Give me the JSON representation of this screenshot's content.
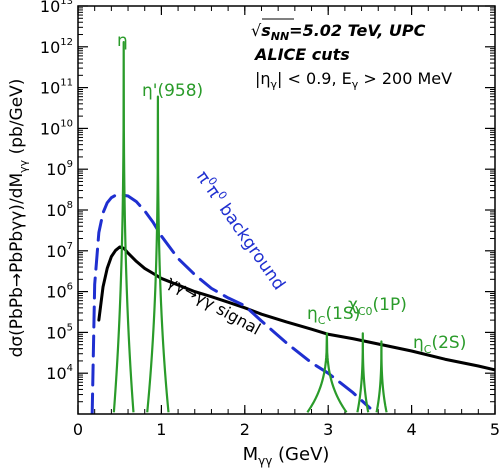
{
  "chart_data": {
    "type": "line",
    "ylabel_parts": {
      "main": "dσ(PbPb→PbPbγγ)/dM",
      "sub": "γγ",
      "unit": " (pb/GeV)"
    },
    "xlabel_parts": {
      "main": "M",
      "sub": "γγ",
      "unit": " (GeV)"
    },
    "xlim": [
      0,
      5
    ],
    "ylog": true,
    "ylim": [
      1000,
      10000000000000
    ],
    "xticks": [
      0,
      1,
      2,
      3,
      4,
      5
    ],
    "xtick_labels": [
      "0",
      "1",
      "2",
      "3",
      "4",
      "5"
    ],
    "ytick_exponents": [
      4,
      5,
      6,
      7,
      8,
      9,
      10,
      11,
      12,
      13
    ],
    "ytick_base": "10",
    "colors": {
      "signal": "#000000",
      "background": "#1f2fd0",
      "resonance": "#2a9b2a"
    },
    "annotations": {
      "line1_sqrt": "√",
      "line1_s": "s",
      "line1_sub": "NN",
      "line1_rest": "=5.02 TeV, UPC",
      "line2": "ALICE cuts",
      "line3_pre": "|η",
      "line3_sub1": "γ",
      "line3_mid": "| < 0.9, E",
      "line3_sub2": "γ",
      "line3_post": " > 200 MeV"
    },
    "series_labels": {
      "background_pre": "π",
      "background_sup1": "0",
      "background_mid": "π",
      "background_sup2": "0",
      "background_post": " background",
      "signal": "γγ→γγ signal",
      "eta": "η",
      "etaprime": "η'(958)",
      "etac1s_main": "η",
      "etac1s_sub": "C",
      "etac1s_state": "(1S)",
      "chic0_main": "χ",
      "chic0_sub": "C0",
      "chic0_state": "(1P)",
      "etac2s_main": "η",
      "etac2s_sub": "C",
      "etac2s_state": "(2S)"
    },
    "series": [
      {
        "key": "signal",
        "x": [
          0.25,
          0.3,
          0.35,
          0.4,
          0.45,
          0.5,
          0.55,
          0.6,
          0.7,
          0.8,
          0.9,
          1.0,
          1.2,
          1.4,
          1.6,
          1.8,
          2.0,
          2.2,
          2.5,
          2.8,
          3.0,
          3.3,
          3.6,
          4.0,
          4.4,
          4.8,
          5.0
        ],
        "y": [
          200000,
          1300000,
          3700000,
          7200000,
          10200000,
          12400000,
          11500000,
          8800000,
          5500000,
          3700000,
          2800000,
          2100000,
          1450000,
          1000000,
          750000,
          550000,
          400000,
          280000,
          180000,
          120000,
          90000,
          70000,
          52000,
          35000,
          22000,
          15000,
          12000
        ]
      },
      {
        "key": "background",
        "x": [
          0.17,
          0.2,
          0.25,
          0.3,
          0.35,
          0.4,
          0.45,
          0.5,
          0.55,
          0.6,
          0.7,
          0.8,
          0.9,
          1.0,
          1.2,
          1.4,
          1.6,
          1.8,
          2.0,
          2.2,
          2.5,
          2.8,
          3.0,
          3.3,
          3.5
        ],
        "y": [
          1000,
          1500000,
          28000000,
          85000000,
          150000000,
          200000000,
          230000000,
          240000000,
          230000000,
          220000000,
          160000000,
          95000000,
          50000000,
          23000000,
          6500000,
          2600000,
          1200000,
          700000,
          450000,
          190000,
          55000,
          18000,
          10000,
          3300,
          1400
        ]
      },
      {
        "key": "eta",
        "peak_x": 0.548,
        "peak_y": 1300000000000,
        "base_x": [
          0.43,
          0.665
        ],
        "base_y": 1100
      },
      {
        "key": "etaprime",
        "peak_x": 0.958,
        "peak_y": 60000000000,
        "base_x": [
          0.83,
          1.085
        ],
        "base_y": 1100
      },
      {
        "key": "etac1s",
        "peak_x": 2.984,
        "peak_y": 95000,
        "base_x": [
          2.75,
          3.22
        ],
        "base_y": 1100
      },
      {
        "key": "chic0",
        "peak_x": 3.415,
        "peak_y": 95000,
        "base_x": [
          3.35,
          3.48
        ],
        "base_y": 1100
      },
      {
        "key": "etac2s",
        "peak_x": 3.638,
        "peak_y": 60000,
        "base_x": [
          3.58,
          3.7
        ],
        "base_y": 1100
      }
    ]
  }
}
